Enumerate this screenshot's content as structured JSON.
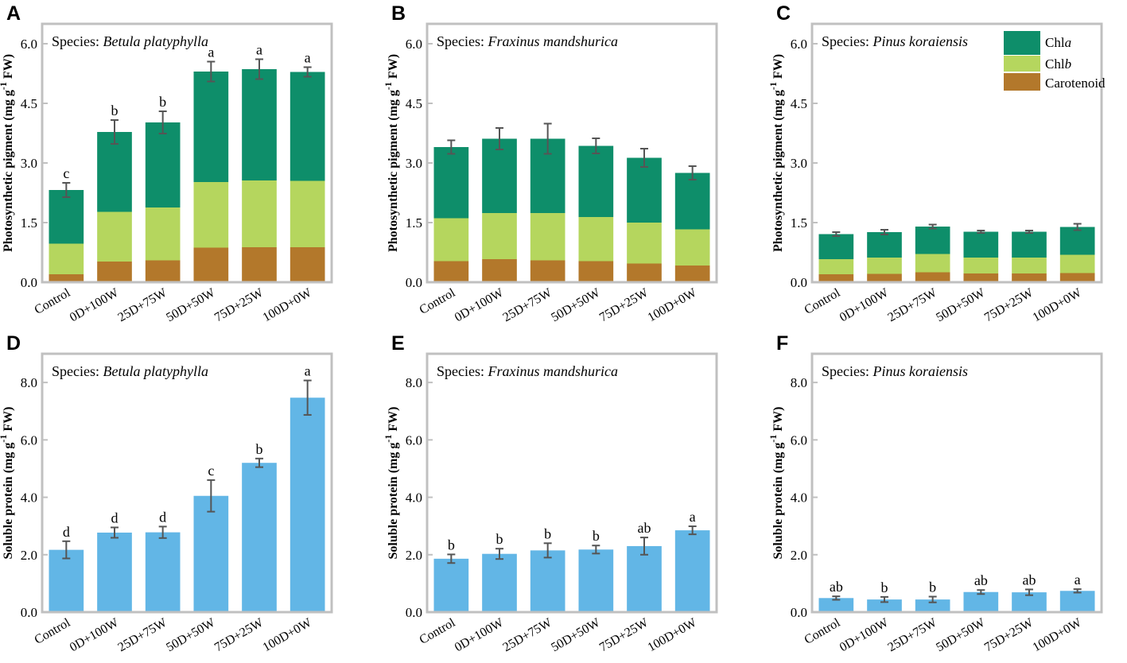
{
  "colors": {
    "chla": "#0e8e6a",
    "chlb": "#b5d65e",
    "carotenoid": "#b3782b",
    "protein": "#62b6e6",
    "frame": "#c0c0c0",
    "errorbar": "#555555"
  },
  "legend": {
    "chla_prefix": "Chl",
    "chla_suffix": "a",
    "chlb_prefix": "Chl",
    "chlb_suffix": "b",
    "carotenoid": "Carotenoid"
  },
  "chart_data": [
    {
      "panel": "A",
      "type": "bar",
      "stacked": true,
      "species_prefix": "Species: ",
      "species_name": "Betula platyphylla",
      "ylabel_main": "Photosynthetic pigment (mg g",
      "ylabel_sup": "-1",
      "ylabel_end": " FW)",
      "ylim": [
        0,
        6.5
      ],
      "yticks": [
        "0.0",
        "1.5",
        "3.0",
        "4.5",
        "6.0"
      ],
      "categories": [
        "Control",
        "0D+100W",
        "25D+75W",
        "50D+50W",
        "75D+25W",
        "100D+0W"
      ],
      "series": [
        {
          "name": "Carotenoid",
          "values": [
            0.2,
            0.52,
            0.55,
            0.87,
            0.88,
            0.88
          ]
        },
        {
          "name": "Chlb",
          "values": [
            0.77,
            1.25,
            1.33,
            1.65,
            1.68,
            1.67
          ]
        },
        {
          "name": "Chla",
          "values": [
            1.35,
            2.01,
            2.14,
            2.78,
            2.8,
            2.74
          ]
        }
      ],
      "totals": [
        2.32,
        3.78,
        4.02,
        5.3,
        5.36,
        5.29
      ],
      "errors": [
        0.18,
        0.3,
        0.28,
        0.25,
        0.25,
        0.12
      ],
      "labels": [
        "c",
        "b",
        "b",
        "a",
        "a",
        "a"
      ]
    },
    {
      "panel": "B",
      "type": "bar",
      "stacked": true,
      "species_prefix": "Species: ",
      "species_name": "Fraxinus mandshurica",
      "ylabel_main": "Photosynthetic pigment (mg g",
      "ylabel_sup": "-1",
      "ylabel_end": " FW)",
      "ylim": [
        0,
        6.5
      ],
      "yticks": [
        "0.0",
        "1.5",
        "3.0",
        "4.5",
        "6.0"
      ],
      "categories": [
        "Control",
        "0D+100W",
        "25D+75W",
        "50D+50W",
        "75D+25W",
        "100D+0W"
      ],
      "series": [
        {
          "name": "Carotenoid",
          "values": [
            0.53,
            0.58,
            0.55,
            0.53,
            0.47,
            0.42
          ]
        },
        {
          "name": "Chlb",
          "values": [
            1.08,
            1.16,
            1.19,
            1.11,
            1.03,
            0.91
          ]
        },
        {
          "name": "Chla",
          "values": [
            1.79,
            1.87,
            1.87,
            1.79,
            1.63,
            1.42
          ]
        }
      ],
      "totals": [
        3.4,
        3.61,
        3.61,
        3.43,
        3.13,
        2.75
      ],
      "errors": [
        0.17,
        0.27,
        0.38,
        0.19,
        0.23,
        0.17
      ],
      "labels": []
    },
    {
      "panel": "C",
      "type": "bar",
      "stacked": true,
      "species_prefix": "Species: ",
      "species_name": "Pinus koraiensis",
      "ylabel_main": "Photosynthetic pigment (mg g",
      "ylabel_sup": "-1",
      "ylabel_end": " FW)",
      "ylim": [
        0,
        6.5
      ],
      "yticks": [
        "0.0",
        "1.5",
        "3.0",
        "4.5",
        "6.0"
      ],
      "categories": [
        "Control",
        "0D+100W",
        "25D+75W",
        "50D+50W",
        "75D+25W",
        "100D+0W"
      ],
      "series": [
        {
          "name": "Carotenoid",
          "values": [
            0.2,
            0.21,
            0.25,
            0.22,
            0.22,
            0.23
          ]
        },
        {
          "name": "Chlb",
          "values": [
            0.38,
            0.41,
            0.46,
            0.4,
            0.4,
            0.46
          ]
        },
        {
          "name": "Chla",
          "values": [
            0.63,
            0.64,
            0.69,
            0.65,
            0.65,
            0.7
          ]
        }
      ],
      "totals": [
        1.21,
        1.26,
        1.4,
        1.27,
        1.27,
        1.39
      ],
      "errors": [
        0.05,
        0.06,
        0.05,
        0.03,
        0.03,
        0.08
      ],
      "labels": [],
      "legend_position": "top-right"
    },
    {
      "panel": "D",
      "type": "bar",
      "stacked": false,
      "species_prefix": "Species: ",
      "species_name": "Betula platyphylla",
      "ylabel_main": "Soluble protein (mg g",
      "ylabel_sup": "-1",
      "ylabel_end": " FW)",
      "ylim": [
        0,
        9
      ],
      "yticks": [
        "0.0",
        "2.0",
        "4.0",
        "6.0",
        "8.0"
      ],
      "categories": [
        "Control",
        "0D+100W",
        "25D+75W",
        "50D+50W",
        "75D+25W",
        "100D+0W"
      ],
      "values": [
        2.17,
        2.77,
        2.78,
        4.05,
        5.2,
        7.47
      ],
      "errors": [
        0.3,
        0.18,
        0.2,
        0.55,
        0.15,
        0.6
      ],
      "labels": [
        "d",
        "d",
        "d",
        "c",
        "b",
        "a"
      ]
    },
    {
      "panel": "E",
      "type": "bar",
      "stacked": false,
      "species_prefix": "Species: ",
      "species_name": "Fraxinus mandshurica",
      "ylabel_main": "Soluble protein (mg g",
      "ylabel_sup": "-1",
      "ylabel_end": " FW)",
      "ylim": [
        0,
        9
      ],
      "yticks": [
        "0.0",
        "2.0",
        "4.0",
        "6.0",
        "8.0"
      ],
      "categories": [
        "Control",
        "0D+100W",
        "25D+75W",
        "50D+50W",
        "75D+25W",
        "100D+0W"
      ],
      "values": [
        1.86,
        2.03,
        2.15,
        2.18,
        2.3,
        2.85
      ],
      "errors": [
        0.15,
        0.18,
        0.25,
        0.14,
        0.3,
        0.14
      ],
      "labels": [
        "b",
        "b",
        "b",
        "b",
        "ab",
        "a"
      ]
    },
    {
      "panel": "F",
      "type": "bar",
      "stacked": false,
      "species_prefix": "Species: ",
      "species_name": "Pinus koraiensis",
      "ylabel_main": "Soluble protein (mg g",
      "ylabel_sup": "-1",
      "ylabel_end": " FW)",
      "ylim": [
        0,
        9
      ],
      "yticks": [
        "0.0",
        "2.0",
        "4.0",
        "6.0",
        "8.0"
      ],
      "categories": [
        "Control",
        "0D+100W",
        "25D+75W",
        "50D+50W",
        "75D+25W",
        "100D+0W"
      ],
      "values": [
        0.49,
        0.44,
        0.44,
        0.7,
        0.69,
        0.74
      ],
      "errors": [
        0.06,
        0.09,
        0.1,
        0.07,
        0.1,
        0.06
      ],
      "labels": [
        "ab",
        "b",
        "b",
        "ab",
        "ab",
        "a"
      ]
    }
  ]
}
